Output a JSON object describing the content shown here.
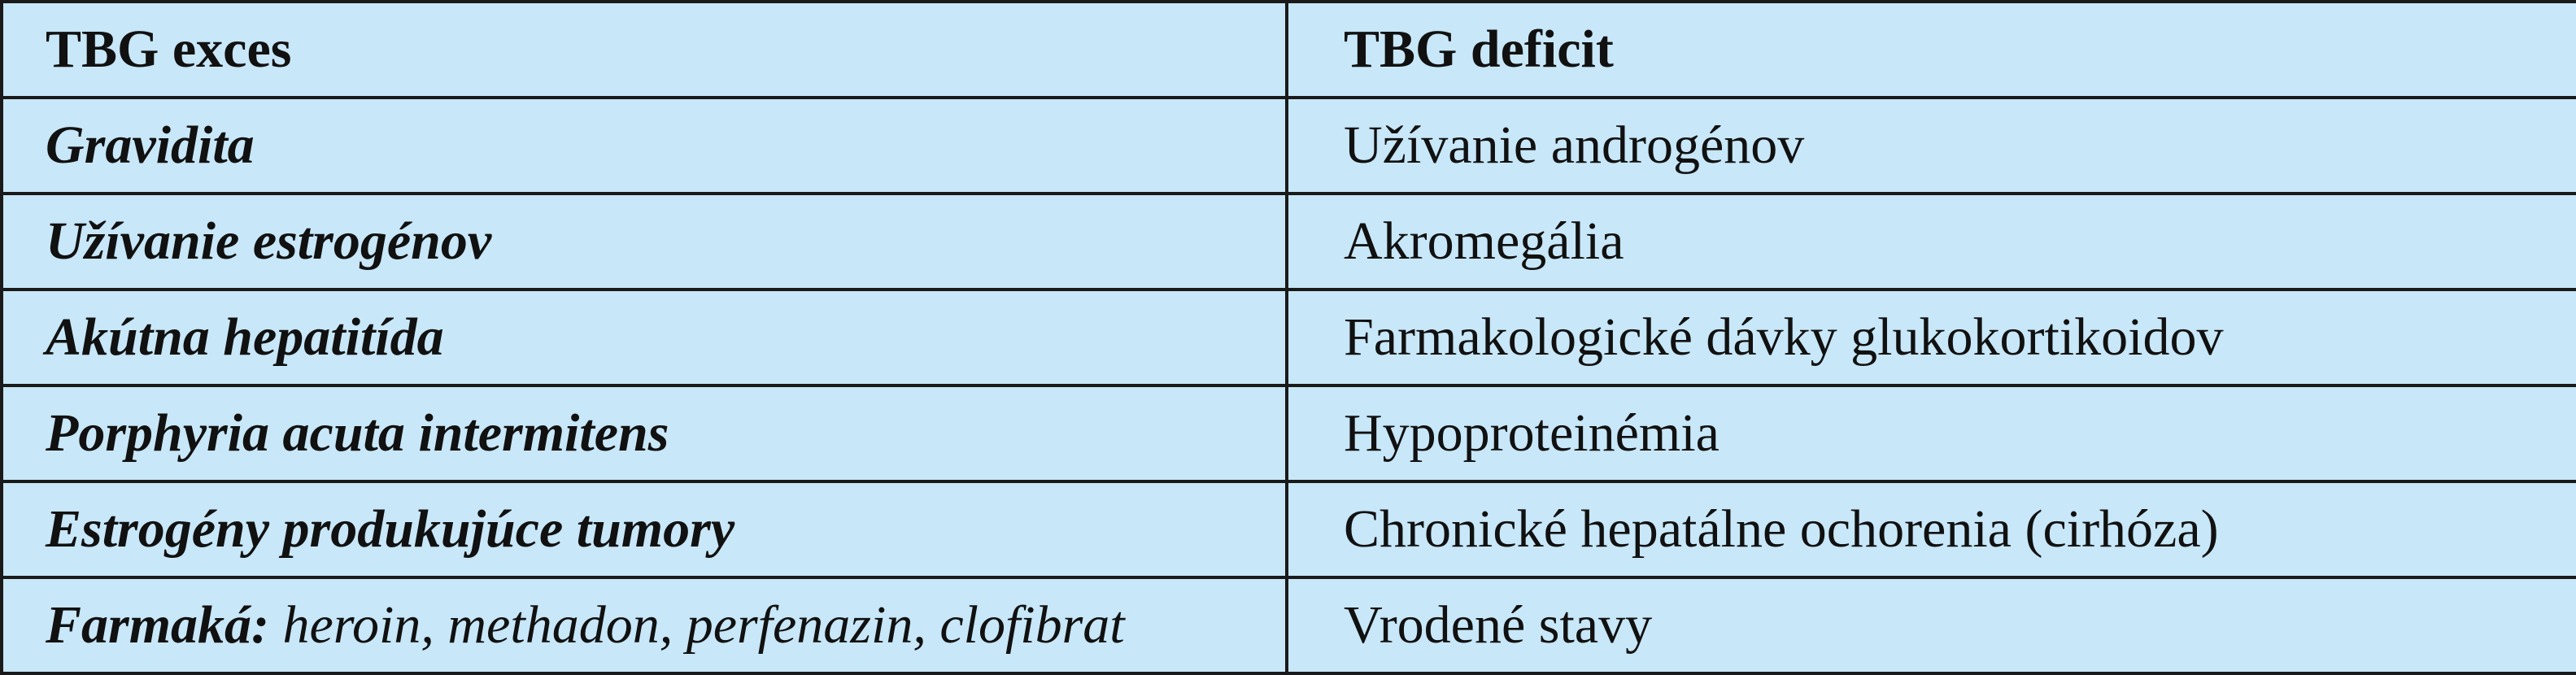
{
  "table": {
    "header": [
      "TBG exces",
      "TBG deficit"
    ],
    "rows": [
      [
        "Gravidita",
        "Užívanie androgénov"
      ],
      [
        "Užívanie estrogénov",
        "Akromegália"
      ],
      [
        "Akútna hepatitída",
        "Farmakologické dávky glukokortikoidov"
      ],
      [
        "Porphyria acuta intermitens",
        "Hypoproteinémia"
      ],
      [
        "Estrogény produkujúce tumory",
        "Chronické hepatálne ochorenia (cirhóza)"
      ],
      [
        {
          "label": "Farmaká:",
          "text": "heroin, methadon, perfenazin, clofibrat"
        },
        "Vrodené stavy"
      ]
    ]
  }
}
